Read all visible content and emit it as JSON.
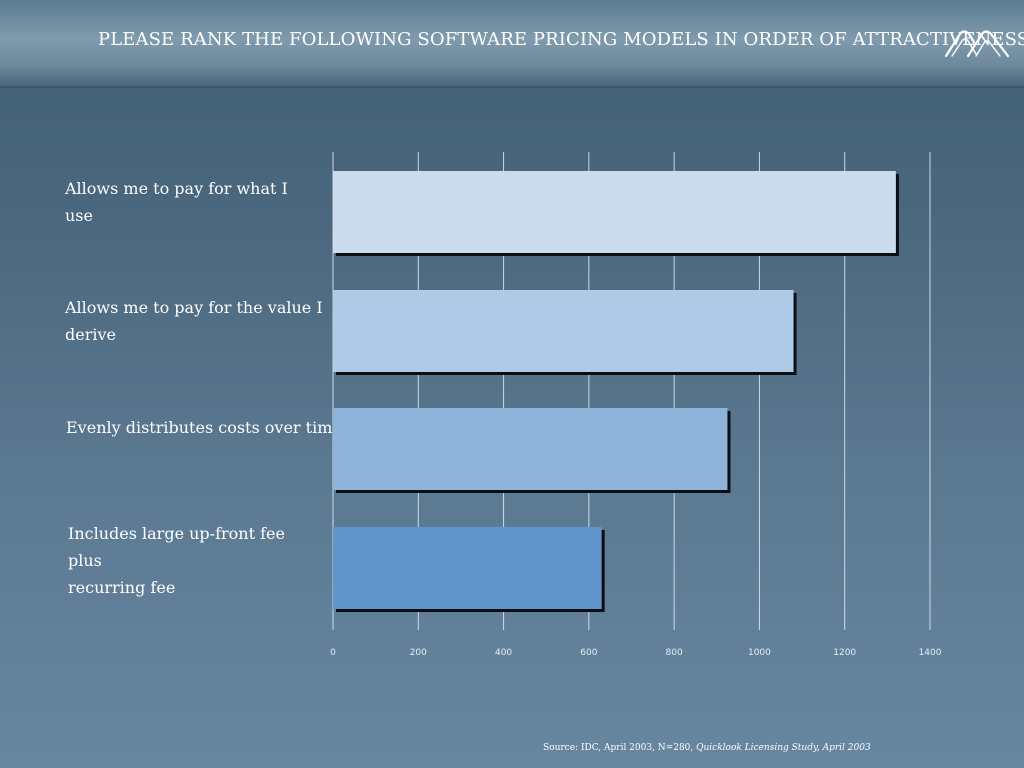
{
  "header": {
    "title": "PLEASE RANK THE FOLLOWING SOFTWARE PRICING MODELS IN ORDER OF ATTRACTIVENESS.",
    "logo_icon": "double-arch-logo-icon"
  },
  "chart_data": {
    "type": "bar",
    "orientation": "horizontal",
    "categories": [
      "Allows me to pay for what I\nuse",
      "Allows me to pay for the value I\nderive",
      "Evenly distributes costs over time",
      "Includes large up-front fee\nplus\nrecurring fee"
    ],
    "values": [
      1320,
      1080,
      925,
      630
    ],
    "colors": [
      "#c9dbec",
      "#afcae6",
      "#8fb4da",
      "#6095cb"
    ],
    "xlim": [
      0,
      1400
    ],
    "xticks": [
      0,
      200,
      400,
      600,
      800,
      1000,
      1200,
      1400
    ],
    "grid": true,
    "legend": "none"
  },
  "source": {
    "text": "Source: IDC,  April 2003, N=280, ",
    "italic": "Quicklook Licensing Study, April 2003"
  }
}
